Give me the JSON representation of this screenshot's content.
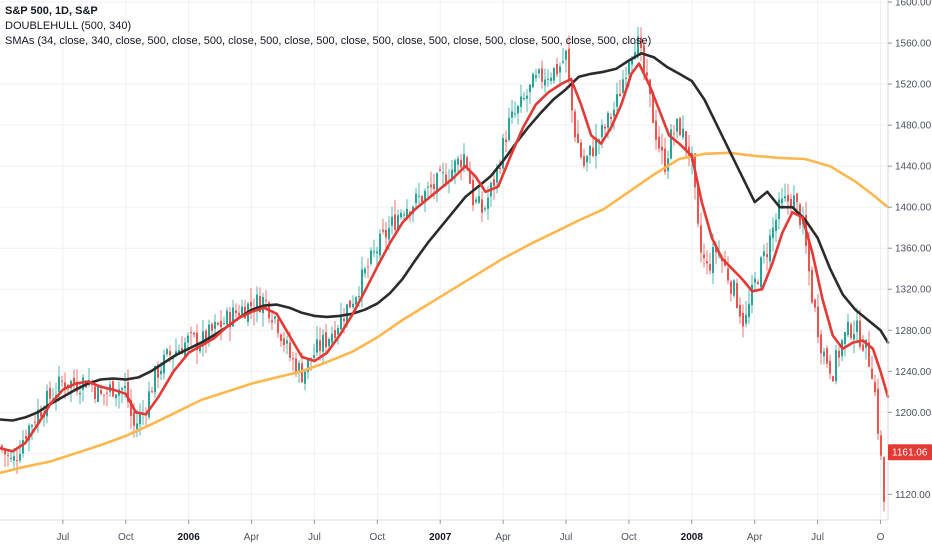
{
  "legend": {
    "title": "S&P 500, 1D, S&P",
    "line2": "DOUBLEHULL (500, 340)",
    "line3": "SMAs (34, close, 340, close, 500, close, 500, close, 500, close, 500, close, 500, close, 500, close, 500, close, 500, close, 500, close)"
  },
  "colors": {
    "background": "#ffffff",
    "grid": "#eef0f3",
    "up_candle": "#26a69a",
    "down_candle": "#ef5350",
    "sma34": "#e53935",
    "sma340": "#2b2b2b",
    "sma500": "#ffb74d",
    "price_badge": "#e53935",
    "axis_text": "#4c525e"
  },
  "chart_data": {
    "type": "line",
    "title": "S&P 500, 1D, S&P",
    "xlabel": "",
    "ylabel": "",
    "x_ticks": [
      {
        "label": "Jul",
        "x": 2005.5,
        "bold": false
      },
      {
        "label": "Oct",
        "x": 2005.75,
        "bold": false
      },
      {
        "label": "2006",
        "x": 2006.0,
        "bold": true
      },
      {
        "label": "Apr",
        "x": 2006.25,
        "bold": false
      },
      {
        "label": "Jul",
        "x": 2006.5,
        "bold": false
      },
      {
        "label": "Oct",
        "x": 2006.75,
        "bold": false
      },
      {
        "label": "2007",
        "x": 2007.0,
        "bold": true
      },
      {
        "label": "Apr",
        "x": 2007.25,
        "bold": false
      },
      {
        "label": "Jul",
        "x": 2007.5,
        "bold": false
      },
      {
        "label": "Oct",
        "x": 2007.75,
        "bold": false
      },
      {
        "label": "2008",
        "x": 2008.0,
        "bold": true
      },
      {
        "label": "Apr",
        "x": 2008.25,
        "bold": false
      },
      {
        "label": "Jul",
        "x": 2008.5,
        "bold": false
      },
      {
        "label": "O",
        "x": 2008.75,
        "bold": false
      }
    ],
    "y_ticks": [
      1120,
      1160,
      1200,
      1240,
      1280,
      1320,
      1360,
      1400,
      1440,
      1480,
      1520,
      1560,
      1600
    ],
    "xlim": [
      2005.25,
      2008.78
    ],
    "ylim": [
      1095,
      1602
    ],
    "grid": true,
    "last_price": {
      "label": "1161.06",
      "value": 1161.06
    },
    "price_path": [
      [
        2005.25,
        1167
      ],
      [
        2005.3,
        1150
      ],
      [
        2005.35,
        1180
      ],
      [
        2005.4,
        1200
      ],
      [
        2005.45,
        1215
      ],
      [
        2005.5,
        1230
      ],
      [
        2005.55,
        1228
      ],
      [
        2005.6,
        1232
      ],
      [
        2005.65,
        1215
      ],
      [
        2005.7,
        1225
      ],
      [
        2005.75,
        1222
      ],
      [
        2005.78,
        1185
      ],
      [
        2005.82,
        1200
      ],
      [
        2005.87,
        1238
      ],
      [
        2005.92,
        1255
      ],
      [
        2006.0,
        1270
      ],
      [
        2006.05,
        1268
      ],
      [
        2006.1,
        1280
      ],
      [
        2006.15,
        1290
      ],
      [
        2006.2,
        1300
      ],
      [
        2006.25,
        1305
      ],
      [
        2006.3,
        1310
      ],
      [
        2006.35,
        1290
      ],
      [
        2006.4,
        1255
      ],
      [
        2006.45,
        1238
      ],
      [
        2006.5,
        1258
      ],
      [
        2006.55,
        1272
      ],
      [
        2006.6,
        1290
      ],
      [
        2006.65,
        1310
      ],
      [
        2006.7,
        1335
      ],
      [
        2006.75,
        1360
      ],
      [
        2006.8,
        1380
      ],
      [
        2006.85,
        1400
      ],
      [
        2006.9,
        1405
      ],
      [
        2006.95,
        1415
      ],
      [
        2007.0,
        1425
      ],
      [
        2007.05,
        1438
      ],
      [
        2007.1,
        1452
      ],
      [
        2007.13,
        1408
      ],
      [
        2007.17,
        1395
      ],
      [
        2007.22,
        1430
      ],
      [
        2007.27,
        1480
      ],
      [
        2007.32,
        1498
      ],
      [
        2007.37,
        1520
      ],
      [
        2007.42,
        1530
      ],
      [
        2007.47,
        1535
      ],
      [
        2007.5,
        1548
      ],
      [
        2007.53,
        1480
      ],
      [
        2007.57,
        1440
      ],
      [
        2007.6,
        1455
      ],
      [
        2007.65,
        1475
      ],
      [
        2007.7,
        1500
      ],
      [
        2007.75,
        1548
      ],
      [
        2007.78,
        1565
      ],
      [
        2007.82,
        1520
      ],
      [
        2007.86,
        1470
      ],
      [
        2007.89,
        1440
      ],
      [
        2007.92,
        1470
      ],
      [
        2007.95,
        1480
      ],
      [
        2008.0,
        1445
      ],
      [
        2008.03,
        1360
      ],
      [
        2008.06,
        1340
      ],
      [
        2008.1,
        1360
      ],
      [
        2008.15,
        1330
      ],
      [
        2008.18,
        1310
      ],
      [
        2008.21,
        1285
      ],
      [
        2008.25,
        1325
      ],
      [
        2008.3,
        1360
      ],
      [
        2008.35,
        1400
      ],
      [
        2008.4,
        1410
      ],
      [
        2008.44,
        1385
      ],
      [
        2008.48,
        1310
      ],
      [
        2008.52,
        1260
      ],
      [
        2008.56,
        1240
      ],
      [
        2008.6,
        1270
      ],
      [
        2008.64,
        1285
      ],
      [
        2008.68,
        1270
      ],
      [
        2008.72,
        1240
      ],
      [
        2008.75,
        1160
      ],
      [
        2008.765,
        1110
      ],
      [
        2008.78,
        1161.06
      ]
    ],
    "series": [
      {
        "name": "SMA 34",
        "color": "#e53935",
        "points": [
          [
            2005.25,
            1165
          ],
          [
            2005.3,
            1162
          ],
          [
            2005.35,
            1170
          ],
          [
            2005.4,
            1188
          ],
          [
            2005.45,
            1208
          ],
          [
            2005.5,
            1222
          ],
          [
            2005.55,
            1228
          ],
          [
            2005.6,
            1230
          ],
          [
            2005.65,
            1225
          ],
          [
            2005.7,
            1222
          ],
          [
            2005.75,
            1218
          ],
          [
            2005.79,
            1200
          ],
          [
            2005.83,
            1198
          ],
          [
            2005.88,
            1215
          ],
          [
            2005.94,
            1240
          ],
          [
            2006.0,
            1258
          ],
          [
            2006.05,
            1265
          ],
          [
            2006.1,
            1272
          ],
          [
            2006.15,
            1283
          ],
          [
            2006.2,
            1292
          ],
          [
            2006.25,
            1298
          ],
          [
            2006.3,
            1302
          ],
          [
            2006.35,
            1296
          ],
          [
            2006.4,
            1275
          ],
          [
            2006.45,
            1254
          ],
          [
            2006.5,
            1250
          ],
          [
            2006.55,
            1258
          ],
          [
            2006.6,
            1275
          ],
          [
            2006.65,
            1295
          ],
          [
            2006.7,
            1318
          ],
          [
            2006.75,
            1342
          ],
          [
            2006.8,
            1365
          ],
          [
            2006.85,
            1385
          ],
          [
            2006.9,
            1398
          ],
          [
            2006.95,
            1408
          ],
          [
            2007.0,
            1418
          ],
          [
            2007.05,
            1428
          ],
          [
            2007.1,
            1440
          ],
          [
            2007.14,
            1430
          ],
          [
            2007.18,
            1415
          ],
          [
            2007.23,
            1420
          ],
          [
            2007.28,
            1450
          ],
          [
            2007.33,
            1478
          ],
          [
            2007.38,
            1500
          ],
          [
            2007.43,
            1512
          ],
          [
            2007.48,
            1520
          ],
          [
            2007.52,
            1525
          ],
          [
            2007.56,
            1500
          ],
          [
            2007.6,
            1470
          ],
          [
            2007.64,
            1462
          ],
          [
            2007.68,
            1478
          ],
          [
            2007.72,
            1500
          ],
          [
            2007.76,
            1530
          ],
          [
            2007.79,
            1540
          ],
          [
            2007.83,
            1520
          ],
          [
            2007.87,
            1495
          ],
          [
            2007.91,
            1470
          ],
          [
            2007.95,
            1462
          ],
          [
            2008.0,
            1450
          ],
          [
            2008.04,
            1405
          ],
          [
            2008.08,
            1370
          ],
          [
            2008.12,
            1350
          ],
          [
            2008.16,
            1340
          ],
          [
            2008.2,
            1330
          ],
          [
            2008.24,
            1318
          ],
          [
            2008.28,
            1320
          ],
          [
            2008.32,
            1345
          ],
          [
            2008.36,
            1375
          ],
          [
            2008.4,
            1395
          ],
          [
            2008.44,
            1390
          ],
          [
            2008.48,
            1355
          ],
          [
            2008.52,
            1310
          ],
          [
            2008.56,
            1275
          ],
          [
            2008.6,
            1262
          ],
          [
            2008.64,
            1268
          ],
          [
            2008.68,
            1270
          ],
          [
            2008.72,
            1262
          ],
          [
            2008.75,
            1240
          ],
          [
            2008.78,
            1215
          ]
        ]
      },
      {
        "name": "SMA 340",
        "color": "#2b2b2b",
        "points": [
          [
            2005.25,
            1193
          ],
          [
            2005.3,
            1192
          ],
          [
            2005.35,
            1195
          ],
          [
            2005.4,
            1200
          ],
          [
            2005.45,
            1208
          ],
          [
            2005.5,
            1215
          ],
          [
            2005.55,
            1222
          ],
          [
            2005.6,
            1228
          ],
          [
            2005.65,
            1232
          ],
          [
            2005.7,
            1233
          ],
          [
            2005.75,
            1232
          ],
          [
            2005.8,
            1234
          ],
          [
            2005.85,
            1240
          ],
          [
            2005.9,
            1248
          ],
          [
            2005.95,
            1256
          ],
          [
            2006.0,
            1262
          ],
          [
            2006.05,
            1268
          ],
          [
            2006.1,
            1275
          ],
          [
            2006.15,
            1283
          ],
          [
            2006.2,
            1292
          ],
          [
            2006.25,
            1300
          ],
          [
            2006.3,
            1304
          ],
          [
            2006.35,
            1305
          ],
          [
            2006.4,
            1302
          ],
          [
            2006.45,
            1297
          ],
          [
            2006.5,
            1294
          ],
          [
            2006.55,
            1293
          ],
          [
            2006.6,
            1294
          ],
          [
            2006.65,
            1296
          ],
          [
            2006.7,
            1300
          ],
          [
            2006.75,
            1306
          ],
          [
            2006.8,
            1316
          ],
          [
            2006.85,
            1330
          ],
          [
            2006.9,
            1348
          ],
          [
            2006.95,
            1365
          ],
          [
            2007.0,
            1380
          ],
          [
            2007.05,
            1395
          ],
          [
            2007.1,
            1410
          ],
          [
            2007.15,
            1420
          ],
          [
            2007.2,
            1430
          ],
          [
            2007.25,
            1445
          ],
          [
            2007.3,
            1462
          ],
          [
            2007.35,
            1478
          ],
          [
            2007.4,
            1492
          ],
          [
            2007.45,
            1505
          ],
          [
            2007.5,
            1515
          ],
          [
            2007.55,
            1527
          ],
          [
            2007.6,
            1530
          ],
          [
            2007.65,
            1532
          ],
          [
            2007.7,
            1535
          ],
          [
            2007.75,
            1543
          ],
          [
            2007.8,
            1550
          ],
          [
            2007.85,
            1546
          ],
          [
            2007.9,
            1537
          ],
          [
            2007.95,
            1530
          ],
          [
            2008.0,
            1523
          ],
          [
            2008.05,
            1505
          ],
          [
            2008.1,
            1480
          ],
          [
            2008.15,
            1455
          ],
          [
            2008.2,
            1430
          ],
          [
            2008.25,
            1405
          ],
          [
            2008.3,
            1415
          ],
          [
            2008.35,
            1400
          ],
          [
            2008.4,
            1400
          ],
          [
            2008.45,
            1388
          ],
          [
            2008.5,
            1370
          ],
          [
            2008.55,
            1340
          ],
          [
            2008.6,
            1315
          ],
          [
            2008.65,
            1300
          ],
          [
            2008.7,
            1290
          ],
          [
            2008.75,
            1280
          ],
          [
            2008.78,
            1268
          ]
        ]
      },
      {
        "name": "SMA 500",
        "color": "#ffb74d",
        "points": [
          [
            2005.25,
            1141
          ],
          [
            2005.35,
            1147
          ],
          [
            2005.45,
            1152
          ],
          [
            2005.55,
            1160
          ],
          [
            2005.65,
            1168
          ],
          [
            2005.75,
            1177
          ],
          [
            2005.85,
            1188
          ],
          [
            2005.95,
            1200
          ],
          [
            2006.05,
            1212
          ],
          [
            2006.15,
            1220
          ],
          [
            2006.25,
            1228
          ],
          [
            2006.35,
            1234
          ],
          [
            2006.45,
            1240
          ],
          [
            2006.55,
            1249
          ],
          [
            2006.65,
            1259
          ],
          [
            2006.75,
            1273
          ],
          [
            2006.85,
            1290
          ],
          [
            2006.95,
            1305
          ],
          [
            2007.05,
            1320
          ],
          [
            2007.15,
            1335
          ],
          [
            2007.25,
            1350
          ],
          [
            2007.35,
            1363
          ],
          [
            2007.45,
            1375
          ],
          [
            2007.55,
            1387
          ],
          [
            2007.65,
            1398
          ],
          [
            2007.75,
            1415
          ],
          [
            2007.85,
            1432
          ],
          [
            2007.95,
            1447
          ],
          [
            2008.05,
            1452
          ],
          [
            2008.15,
            1453
          ],
          [
            2008.25,
            1450
          ],
          [
            2008.35,
            1448
          ],
          [
            2008.45,
            1447
          ],
          [
            2008.55,
            1440
          ],
          [
            2008.65,
            1425
          ],
          [
            2008.72,
            1412
          ],
          [
            2008.78,
            1400
          ]
        ]
      }
    ]
  }
}
